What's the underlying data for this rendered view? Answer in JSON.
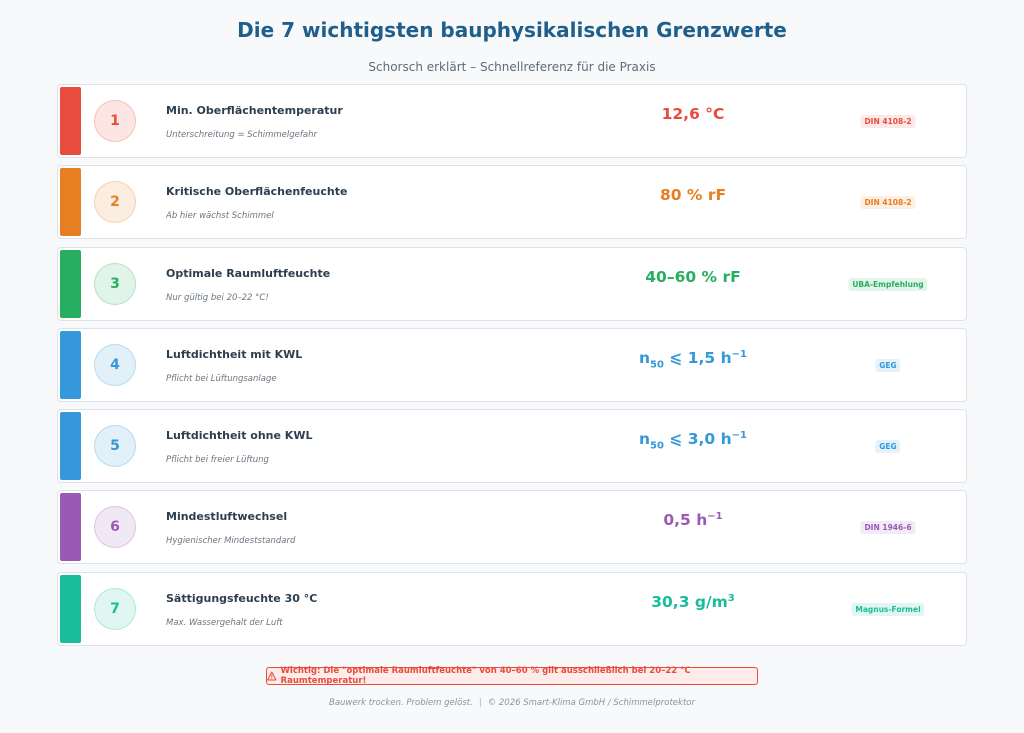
{
  "title": "Die 7 wichtigsten bauphysikalischen Grenzwerte",
  "subtitle": "Schorsch erklärt – Schnellreferenz für die Praxis",
  "rows": [
    {
      "num": "1",
      "name": "Min. Oberflächentemperatur",
      "desc": "Unterschreitung = Schimmelgefahr",
      "value": "12,6 °C",
      "tag": "DIN 4108-2",
      "color": "#e74c3c"
    },
    {
      "num": "2",
      "name": "Kritische Oberflächenfeuchte",
      "desc": "Ab hier wächst Schimmel",
      "value": "80 % rF",
      "tag": "DIN 4108-2",
      "color": "#e67e22"
    },
    {
      "num": "3",
      "name": "Optimale Raumluftfeuchte",
      "desc": "Nur gültig bei 20–22 °C!",
      "value": "40–60 % rF",
      "tag": "UBA-Empfehlung",
      "color": "#27ae60"
    },
    {
      "num": "4",
      "name": "Luftdichtheit mit KWL",
      "desc": "Pflicht bei Lüftungsanlage",
      "value_main": "n",
      "value_sub": "50",
      "value_rest": " ⩽ 1,5 h",
      "value_sup": "−1",
      "tag": "GEG",
      "color": "#3498db"
    },
    {
      "num": "5",
      "name": "Luftdichtheit ohne KWL",
      "desc": "Pflicht bei freier Lüftung",
      "value_main": "n",
      "value_sub": "50",
      "value_rest": " ⩽ 3,0 h",
      "value_sup": "−1",
      "tag": "GEG",
      "color": "#3498db"
    },
    {
      "num": "6",
      "name": "Mindestluftwechsel",
      "desc": "Hygienischer Mindeststandard",
      "value_rest": "0,5 h",
      "value_sup": "−1",
      "tag": "DIN 1946-6",
      "color": "#9b59b6"
    },
    {
      "num": "7",
      "name": "Sättigungsfeuchte 30 °C",
      "desc": "Max. Wassergehalt der Luft",
      "value_rest": "30,3 g/m",
      "value_sup": "3",
      "tag": "Magnus-Formel",
      "color": "#1abc9c"
    }
  ],
  "warning": {
    "icon": "warning-triangle-icon",
    "text": "Wichtig: Die \"optimale Raumluftfeuchte\" von 40–60 % gilt ausschließlich bei 20–22 °C Raumtemperatur!"
  },
  "footer": {
    "left": "Bauwerk trocken. Problem gelöst.",
    "separator": "|",
    "right": "© 2026 Smart-Klima GmbH / Schimmelprotektor"
  }
}
